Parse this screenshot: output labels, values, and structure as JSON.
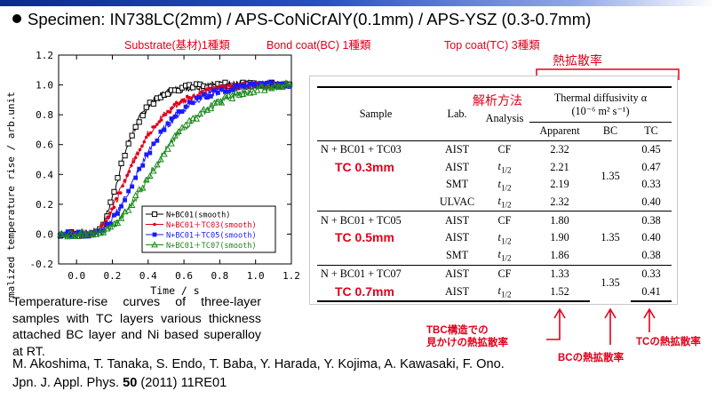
{
  "slide": {
    "specimen": "Specimen: IN738LC(2mm) / APS-CoNiCrAlY(0.1mm) / APS-YSZ (0.3-0.7mm)",
    "substrate_label": "Substrate(基材)1種類",
    "bondcoat_label": "Bond coat(BC) 1種類",
    "topcoat_label": "Top coat(TC) 3種類",
    "diffusivity_jp": "熱拡散率",
    "analysis_jp": "解析方法",
    "caption": "Temperature-rise curves of three-layer samples with TC layers various thickness attached BC layer and Ni based superalloy at RT.",
    "reference_line1": "M. Akoshima, T. Tanaka, S. Endo, T. Baba, Y. Harada, Y. Kojima, A. Kawasaki, F. Ono.",
    "reference_line2_pre": "Jpn. J. Appl. Phys. ",
    "reference_volume": "50",
    "reference_line2_post": " (2011) 11RE01",
    "ann_apparent_1": "TBC構造での",
    "ann_apparent_2": "見かけの熱拡散率",
    "ann_bc": "BCの熱拡散率",
    "ann_tc": "TCの熱拡散率"
  },
  "chart_data": {
    "type": "scatter",
    "xlabel": "Time / s",
    "ylabel": "Normalized temperature rise / arb.unit",
    "xlim": [
      -0.1,
      1.2
    ],
    "ylim": [
      -0.2,
      1.2
    ],
    "xticks": [
      "0.0",
      "0.2",
      "0.4",
      "0.6",
      "0.8",
      "1.0",
      "1.2"
    ],
    "yticks": [
      "-0.2",
      "0.0",
      "0.2",
      "0.4",
      "0.6",
      "0.8",
      "1.0",
      "1.2"
    ],
    "legend_position": "lower-right",
    "series": [
      {
        "name": "N+BC01(smooth)",
        "color": "#000000",
        "marker": "open-square",
        "x": [
          -0.1,
          0.05,
          0.12,
          0.16,
          0.2,
          0.24,
          0.28,
          0.32,
          0.36,
          0.4,
          0.45,
          0.5,
          0.55,
          0.6,
          0.7,
          0.8,
          0.9,
          1.0,
          1.1,
          1.2
        ],
        "y": [
          0.0,
          0.0,
          0.02,
          0.1,
          0.24,
          0.42,
          0.58,
          0.7,
          0.79,
          0.86,
          0.91,
          0.945,
          0.965,
          0.98,
          0.995,
          1.0,
          1.0,
          1.005,
          1.0,
          1.0
        ]
      },
      {
        "name": "N+BC01＋TC03(smooth)",
        "color": "#e0001b",
        "marker": "dot",
        "x": [
          -0.1,
          0.05,
          0.12,
          0.16,
          0.2,
          0.25,
          0.3,
          0.35,
          0.4,
          0.45,
          0.5,
          0.55,
          0.6,
          0.7,
          0.8,
          0.9,
          1.0,
          1.1,
          1.2
        ],
        "y": [
          0.0,
          0.0,
          0.02,
          0.07,
          0.17,
          0.3,
          0.45,
          0.57,
          0.67,
          0.75,
          0.81,
          0.86,
          0.9,
          0.95,
          0.98,
          0.99,
          1.0,
          1.0,
          1.0
        ]
      },
      {
        "name": "N+BC01＋TC05(smooth)",
        "color": "#1a1aff",
        "marker": "filled-square",
        "x": [
          -0.1,
          0.05,
          0.12,
          0.18,
          0.22,
          0.27,
          0.32,
          0.38,
          0.44,
          0.5,
          0.56,
          0.62,
          0.7,
          0.8,
          0.9,
          1.0,
          1.1,
          1.2
        ],
        "y": [
          0.0,
          0.0,
          0.01,
          0.06,
          0.13,
          0.24,
          0.36,
          0.5,
          0.62,
          0.72,
          0.8,
          0.86,
          0.92,
          0.96,
          0.985,
          1.0,
          1.0,
          1.0
        ]
      },
      {
        "name": "N+BC01＋TC07(smooth)",
        "color": "#1a8a1a",
        "marker": "open-triangle",
        "x": [
          -0.1,
          0.05,
          0.14,
          0.2,
          0.25,
          0.3,
          0.36,
          0.42,
          0.48,
          0.54,
          0.6,
          0.66,
          0.74,
          0.82,
          0.9,
          1.0,
          1.1,
          1.2
        ],
        "y": [
          0.0,
          0.0,
          0.01,
          0.05,
          0.11,
          0.19,
          0.3,
          0.42,
          0.53,
          0.63,
          0.71,
          0.78,
          0.85,
          0.9,
          0.94,
          0.97,
          0.99,
          1.0
        ]
      }
    ]
  },
  "table": {
    "headers": {
      "sample": "Sample",
      "lab": "Lab.",
      "analysis": "Analysis",
      "diffusivity_line1": "Thermal diffusivity α",
      "diffusivity_line2": "(10⁻⁶ m² s⁻¹)",
      "apparent": "Apparent",
      "bc": "BC",
      "tc": "TC"
    },
    "groups": [
      {
        "sample": "N + BC01 + TC03",
        "tc_label": "TC 0.3mm",
        "bc": "1.35",
        "rows": [
          {
            "lab": "AIST",
            "analysis": "CF",
            "apparent": "2.32",
            "tc": "0.45"
          },
          {
            "lab": "AIST",
            "analysis": "t1/2",
            "apparent": "2.21",
            "tc": "0.47"
          },
          {
            "lab": "SMT",
            "analysis": "t1/2",
            "apparent": "2.19",
            "tc": "0.33"
          },
          {
            "lab": "ULVAC",
            "analysis": "t1/2",
            "apparent": "2.32",
            "tc": "0.40"
          }
        ]
      },
      {
        "sample": "N + BC01 + TC05",
        "tc_label": "TC 0.5mm",
        "bc": "1.35",
        "rows": [
          {
            "lab": "AIST",
            "analysis": "CF",
            "apparent": "1.80",
            "tc": "0.38"
          },
          {
            "lab": "AIST",
            "analysis": "t1/2",
            "apparent": "1.90",
            "tc": "0.40"
          },
          {
            "lab": "SMT",
            "analysis": "t1/2",
            "apparent": "1.86",
            "tc": "0.38"
          }
        ]
      },
      {
        "sample": "N + BC01 + TC07",
        "tc_label": "TC 0.7mm",
        "bc": "1.35",
        "rows": [
          {
            "lab": "AIST",
            "analysis": "CF",
            "apparent": "1.33",
            "tc": "0.33"
          },
          {
            "lab": "AIST",
            "analysis": "t1/2",
            "apparent": "1.52",
            "tc": "0.41"
          }
        ]
      }
    ]
  }
}
